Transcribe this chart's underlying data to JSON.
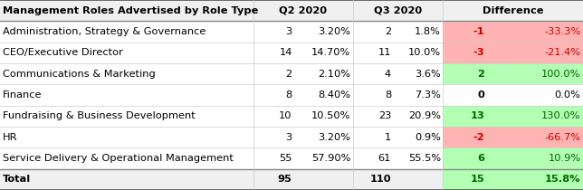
{
  "title": "Management Roles Advertised by Role Type",
  "col_headers": [
    "Q2 2020",
    "Q3 2020",
    "Difference"
  ],
  "rows": [
    {
      "label": "Administration, Strategy & Governance",
      "q2_n": "3",
      "q2_p": "3.20%",
      "q3_n": "2",
      "q3_p": "1.8%",
      "diff_n": "-1",
      "diff_p": "-33.3%",
      "diff_color": "red"
    },
    {
      "label": "CEO/Executive Director",
      "q2_n": "14",
      "q2_p": "14.70%",
      "q3_n": "11",
      "q3_p": "10.0%",
      "diff_n": "-3",
      "diff_p": "-21.4%",
      "diff_color": "red"
    },
    {
      "label": "Communications & Marketing",
      "q2_n": "2",
      "q2_p": "2.10%",
      "q3_n": "4",
      "q3_p": "3.6%",
      "diff_n": "2",
      "diff_p": "100.0%",
      "diff_color": "green"
    },
    {
      "label": "Finance",
      "q2_n": "8",
      "q2_p": "8.40%",
      "q3_n": "8",
      "q3_p": "7.3%",
      "diff_n": "0",
      "diff_p": "0.0%",
      "diff_color": "none"
    },
    {
      "label": "Fundraising & Business Development",
      "q2_n": "10",
      "q2_p": "10.50%",
      "q3_n": "23",
      "q3_p": "20.9%",
      "diff_n": "13",
      "diff_p": "130.0%",
      "diff_color": "green"
    },
    {
      "label": "HR",
      "q2_n": "3",
      "q2_p": "3.20%",
      "q3_n": "1",
      "q3_p": "0.9%",
      "diff_n": "-2",
      "diff_p": "-66.7%",
      "diff_color": "red"
    },
    {
      "label": "Service Delivery & Operational Management",
      "q2_n": "55",
      "q2_p": "57.90%",
      "q3_n": "61",
      "q3_p": "55.5%",
      "diff_n": "6",
      "diff_p": "10.9%",
      "diff_color": "green"
    }
  ],
  "total": {
    "label": "Total",
    "q2_n": "95",
    "q2_p": "",
    "q3_n": "110",
    "q3_p": "",
    "diff_n": "15",
    "diff_p": "15.8%",
    "diff_color": "green"
  },
  "bg_color": "#ffffff",
  "header_bg": "#f0f0f0",
  "red_bg": "#ffb3b3",
  "green_bg": "#b3ffb3",
  "red_text": "#cc0000",
  "green_text": "#006600",
  "header_font_size": 8.2,
  "cell_font_size": 8.2,
  "col_bounds": [
    0.0,
    0.435,
    0.505,
    0.605,
    0.675,
    0.76,
    0.835,
    1.0
  ]
}
